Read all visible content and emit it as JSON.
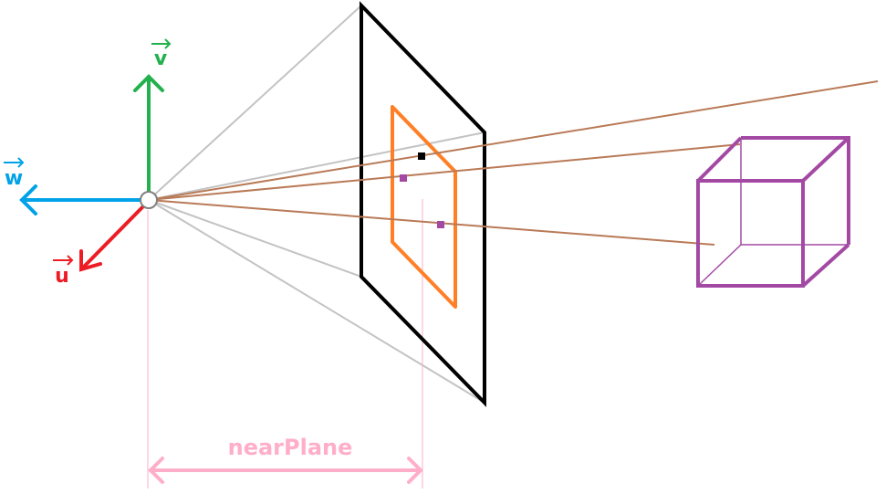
{
  "labels": {
    "v": "v",
    "w": "w",
    "u": "u",
    "near_plane": "nearPlane"
  },
  "colors": {
    "v_axis": "#22b14c",
    "w_axis": "#00a2e8",
    "u_axis": "#ed1c24",
    "frustum_lines": "#c3c3c3",
    "image_plane": "#000000",
    "projected_rect": "#ff7f27",
    "rays": "#b97a57",
    "cube": "#a349a4",
    "near_plane_marker": "#ffaec9",
    "projected_point_black": "#000000",
    "projected_point_purple": "#a349a4"
  }
}
